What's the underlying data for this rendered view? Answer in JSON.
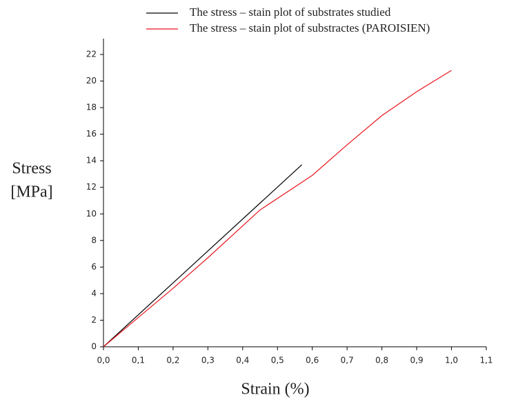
{
  "chart_data": {
    "type": "line",
    "xlabel": "Strain (%)",
    "ylabel": [
      "Stress",
      "[MPa]"
    ],
    "xlim": [
      0,
      1.1
    ],
    "ylim": [
      0,
      22
    ],
    "xticks": [
      {
        "value": 0,
        "label": "0,0"
      },
      {
        "value": 0.1,
        "label": "0,1"
      },
      {
        "value": 0.2,
        "label": "0,2"
      },
      {
        "value": 0.3,
        "label": "0,3"
      },
      {
        "value": 0.4,
        "label": "0,4"
      },
      {
        "value": 0.5,
        "label": "0,5"
      },
      {
        "value": 0.6,
        "label": "0,6"
      },
      {
        "value": 0.7,
        "label": "0,7"
      },
      {
        "value": 0.8,
        "label": "0,8"
      },
      {
        "value": 0.9,
        "label": "0,9"
      },
      {
        "value": 1.0,
        "label": "1,0"
      },
      {
        "value": 1.1,
        "label": "1,1"
      }
    ],
    "yticks": [
      0,
      2,
      4,
      6,
      8,
      10,
      12,
      14,
      16,
      18,
      20,
      22
    ],
    "series": [
      {
        "name": "The stress – stain plot of substrates studied",
        "color": "#000000",
        "x": [
          0,
          0.57
        ],
        "values": [
          0,
          13.7
        ]
      },
      {
        "name": "The stress – stain plot of substractes (PAROISIEN)",
        "color": "#e8141c",
        "x": [
          0,
          0.1,
          0.2,
          0.3,
          0.4,
          0.45,
          0.6,
          0.7,
          0.8,
          0.9,
          1.0
        ],
        "values": [
          0,
          2.2,
          4.4,
          6.7,
          9.1,
          10.3,
          12.9,
          15.2,
          17.4,
          19.2,
          20.8
        ]
      }
    ]
  }
}
